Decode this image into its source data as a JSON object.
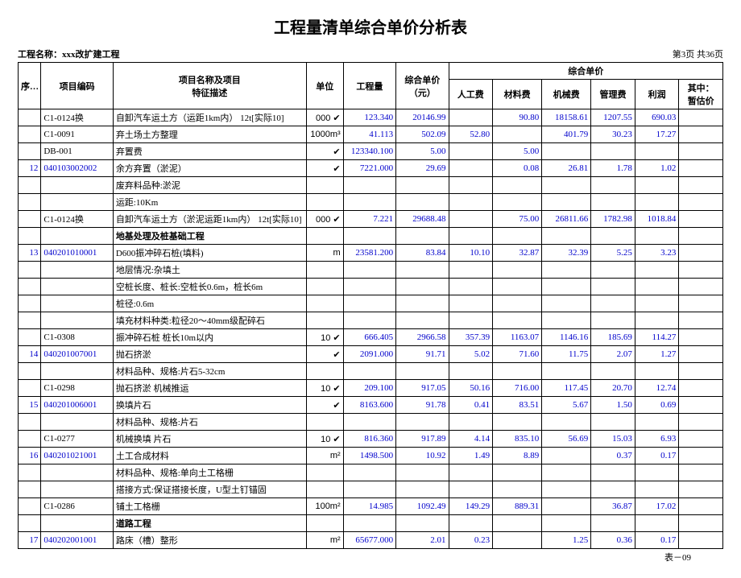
{
  "title": "工程量清单综合单价分析表",
  "project_label": "工程名称：",
  "project_name": "xxx改扩建工程",
  "page_info": "第3页 共36页",
  "footer": "表－09",
  "headers": {
    "seq": "序号",
    "code": "项目编码",
    "desc_l1": "项目名称及项目",
    "desc_l2": "特征描述",
    "unit": "单位",
    "qty": "工程量",
    "comp_l1": "综合单价",
    "comp_l2": "（元）",
    "group": "综合单价",
    "labor": "人工费",
    "material": "材料费",
    "machine": "机械费",
    "mgmt": "管理费",
    "profit": "利润",
    "prov_l1": "其中：",
    "prov_l2": "暂估价"
  },
  "rows": [
    {
      "seq": "",
      "code": "C1-0124换",
      "desc": "自卸汽车运土方（运距1km内） 12t[实际10]",
      "unit": "000 ✔",
      "qty": "123.340",
      "comp": "20146.99",
      "lab": "",
      "mat": "90.80",
      "mach": "18158.61",
      "mgmt": "1207.55",
      "prof": "690.03",
      "prov": ""
    },
    {
      "seq": "",
      "code": "C1-0091",
      "desc": "弃土场土方整理",
      "unit": "1000m³",
      "qty": "41.113",
      "comp": "502.09",
      "lab": "52.80",
      "mat": "",
      "mach": "401.79",
      "mgmt": "30.23",
      "prof": "17.27",
      "prov": ""
    },
    {
      "seq": "",
      "code": "DB-001",
      "desc": "弃置费",
      "unit": "✔",
      "qty": "123340.100",
      "comp": "5.00",
      "lab": "",
      "mat": "5.00",
      "mach": "",
      "mgmt": "",
      "prof": "",
      "prov": ""
    },
    {
      "seq": "12",
      "code": "040103002002",
      "codeblue": true,
      "desc": "余方弃置（淤泥）",
      "unit": "✔",
      "qty": "7221.000",
      "comp": "29.69",
      "lab": "",
      "mat": "0.08",
      "mach": "26.81",
      "mgmt": "1.78",
      "prof": "1.02",
      "prov": ""
    },
    {
      "seq": "",
      "code": "",
      "desc": "废弃料品种:淤泥",
      "unit": "",
      "qty": "",
      "comp": "",
      "lab": "",
      "mat": "",
      "mach": "",
      "mgmt": "",
      "prof": "",
      "prov": ""
    },
    {
      "seq": "",
      "code": "",
      "desc": "运距:10Km",
      "unit": "",
      "qty": "",
      "comp": "",
      "lab": "",
      "mat": "",
      "mach": "",
      "mgmt": "",
      "prof": "",
      "prov": ""
    },
    {
      "seq": "",
      "code": "C1-0124换",
      "desc": "自卸汽车运土方（淤泥运距1km内） 12t[实际10]",
      "unit": "000 ✔",
      "qty": "7.221",
      "comp": "29688.48",
      "lab": "",
      "mat": "75.00",
      "mach": "26811.66",
      "mgmt": "1782.98",
      "prof": "1018.84",
      "prov": ""
    },
    {
      "seq": "",
      "code": "",
      "desc": "地基处理及桩基础工程",
      "unit": "",
      "qty": "",
      "comp": "",
      "lab": "",
      "mat": "",
      "mach": "",
      "mgmt": "",
      "prof": "",
      "prov": "",
      "bold": true
    },
    {
      "seq": "13",
      "code": "040201010001",
      "codeblue": true,
      "desc": "D600振冲碎石桩(填料)",
      "unit": "m",
      "qty": "23581.200",
      "comp": "83.84",
      "lab": "10.10",
      "mat": "32.87",
      "mach": "32.39",
      "mgmt": "5.25",
      "prof": "3.23",
      "prov": ""
    },
    {
      "seq": "",
      "code": "",
      "desc": "地层情况:杂填土",
      "unit": "",
      "qty": "",
      "comp": "",
      "lab": "",
      "mat": "",
      "mach": "",
      "mgmt": "",
      "prof": "",
      "prov": ""
    },
    {
      "seq": "",
      "code": "",
      "desc": "空桩长度、桩长:空桩长0.6m，桩长6m",
      "unit": "",
      "qty": "",
      "comp": "",
      "lab": "",
      "mat": "",
      "mach": "",
      "mgmt": "",
      "prof": "",
      "prov": ""
    },
    {
      "seq": "",
      "code": "",
      "desc": "桩径:0.6m",
      "unit": "",
      "qty": "",
      "comp": "",
      "lab": "",
      "mat": "",
      "mach": "",
      "mgmt": "",
      "prof": "",
      "prov": ""
    },
    {
      "seq": "",
      "code": "",
      "desc": "填充材料种类:粒径20～40mm级配碎石",
      "unit": "",
      "qty": "",
      "comp": "",
      "lab": "",
      "mat": "",
      "mach": "",
      "mgmt": "",
      "prof": "",
      "prov": ""
    },
    {
      "seq": "",
      "code": "C1-0308",
      "desc": "振冲碎石桩 桩长10m以内",
      "unit": "10 ✔",
      "qty": "666.405",
      "comp": "2966.58",
      "lab": "357.39",
      "mat": "1163.07",
      "mach": "1146.16",
      "mgmt": "185.69",
      "prof": "114.27",
      "prov": ""
    },
    {
      "seq": "14",
      "code": "040201007001",
      "codeblue": true,
      "desc": "抛石挤淤",
      "unit": "✔",
      "qty": "2091.000",
      "comp": "91.71",
      "lab": "5.02",
      "mat": "71.60",
      "mach": "11.75",
      "mgmt": "2.07",
      "prof": "1.27",
      "prov": ""
    },
    {
      "seq": "",
      "code": "",
      "desc": "材料品种、规格:片石5-32cm",
      "unit": "",
      "qty": "",
      "comp": "",
      "lab": "",
      "mat": "",
      "mach": "",
      "mgmt": "",
      "prof": "",
      "prov": ""
    },
    {
      "seq": "",
      "code": "C1-0298",
      "desc": "抛石挤淤 机械推运",
      "unit": "10 ✔",
      "qty": "209.100",
      "comp": "917.05",
      "lab": "50.16",
      "mat": "716.00",
      "mach": "117.45",
      "mgmt": "20.70",
      "prof": "12.74",
      "prov": ""
    },
    {
      "seq": "15",
      "code": "040201006001",
      "codeblue": true,
      "desc": "换填片石",
      "unit": "✔",
      "qty": "8163.600",
      "comp": "91.78",
      "lab": "0.41",
      "mat": "83.51",
      "mach": "5.67",
      "mgmt": "1.50",
      "prof": "0.69",
      "prov": ""
    },
    {
      "seq": "",
      "code": "",
      "desc": "材料品种、规格:片石",
      "unit": "",
      "qty": "",
      "comp": "",
      "lab": "",
      "mat": "",
      "mach": "",
      "mgmt": "",
      "prof": "",
      "prov": ""
    },
    {
      "seq": "",
      "code": "C1-0277",
      "desc": "机械换填 片石",
      "unit": "10 ✔",
      "qty": "816.360",
      "comp": "917.89",
      "lab": "4.14",
      "mat": "835.10",
      "mach": "56.69",
      "mgmt": "15.03",
      "prof": "6.93",
      "prov": ""
    },
    {
      "seq": "16",
      "code": "040201021001",
      "codeblue": true,
      "desc": "土工合成材料",
      "unit": "m²",
      "qty": "1498.500",
      "comp": "10.92",
      "lab": "1.49",
      "mat": "8.89",
      "mach": "",
      "mgmt": "0.37",
      "prof": "0.17",
      "prov": ""
    },
    {
      "seq": "",
      "code": "",
      "desc": "材料品种、规格:单向土工格栅",
      "unit": "",
      "qty": "",
      "comp": "",
      "lab": "",
      "mat": "",
      "mach": "",
      "mgmt": "",
      "prof": "",
      "prov": ""
    },
    {
      "seq": "",
      "code": "",
      "desc": "搭接方式:保证搭接长度，U型土钉锚固",
      "unit": "",
      "qty": "",
      "comp": "",
      "lab": "",
      "mat": "",
      "mach": "",
      "mgmt": "",
      "prof": "",
      "prov": ""
    },
    {
      "seq": "",
      "code": "C1-0286",
      "desc": "铺土工格栅",
      "unit": "100m²",
      "qty": "14.985",
      "comp": "1092.49",
      "lab": "149.29",
      "mat": "889.31",
      "mach": "",
      "mgmt": "36.87",
      "prof": "17.02",
      "prov": ""
    },
    {
      "seq": "",
      "code": "",
      "desc": "道路工程",
      "unit": "",
      "qty": "",
      "comp": "",
      "lab": "",
      "mat": "",
      "mach": "",
      "mgmt": "",
      "prof": "",
      "prov": "",
      "bold": true
    },
    {
      "seq": "17",
      "code": "040202001001",
      "codeblue": true,
      "desc": "路床（槽）整形",
      "unit": "m²",
      "qty": "65677.000",
      "comp": "2.01",
      "lab": "0.23",
      "mat": "",
      "mach": "1.25",
      "mgmt": "0.36",
      "prof": "0.17",
      "prov": ""
    }
  ]
}
